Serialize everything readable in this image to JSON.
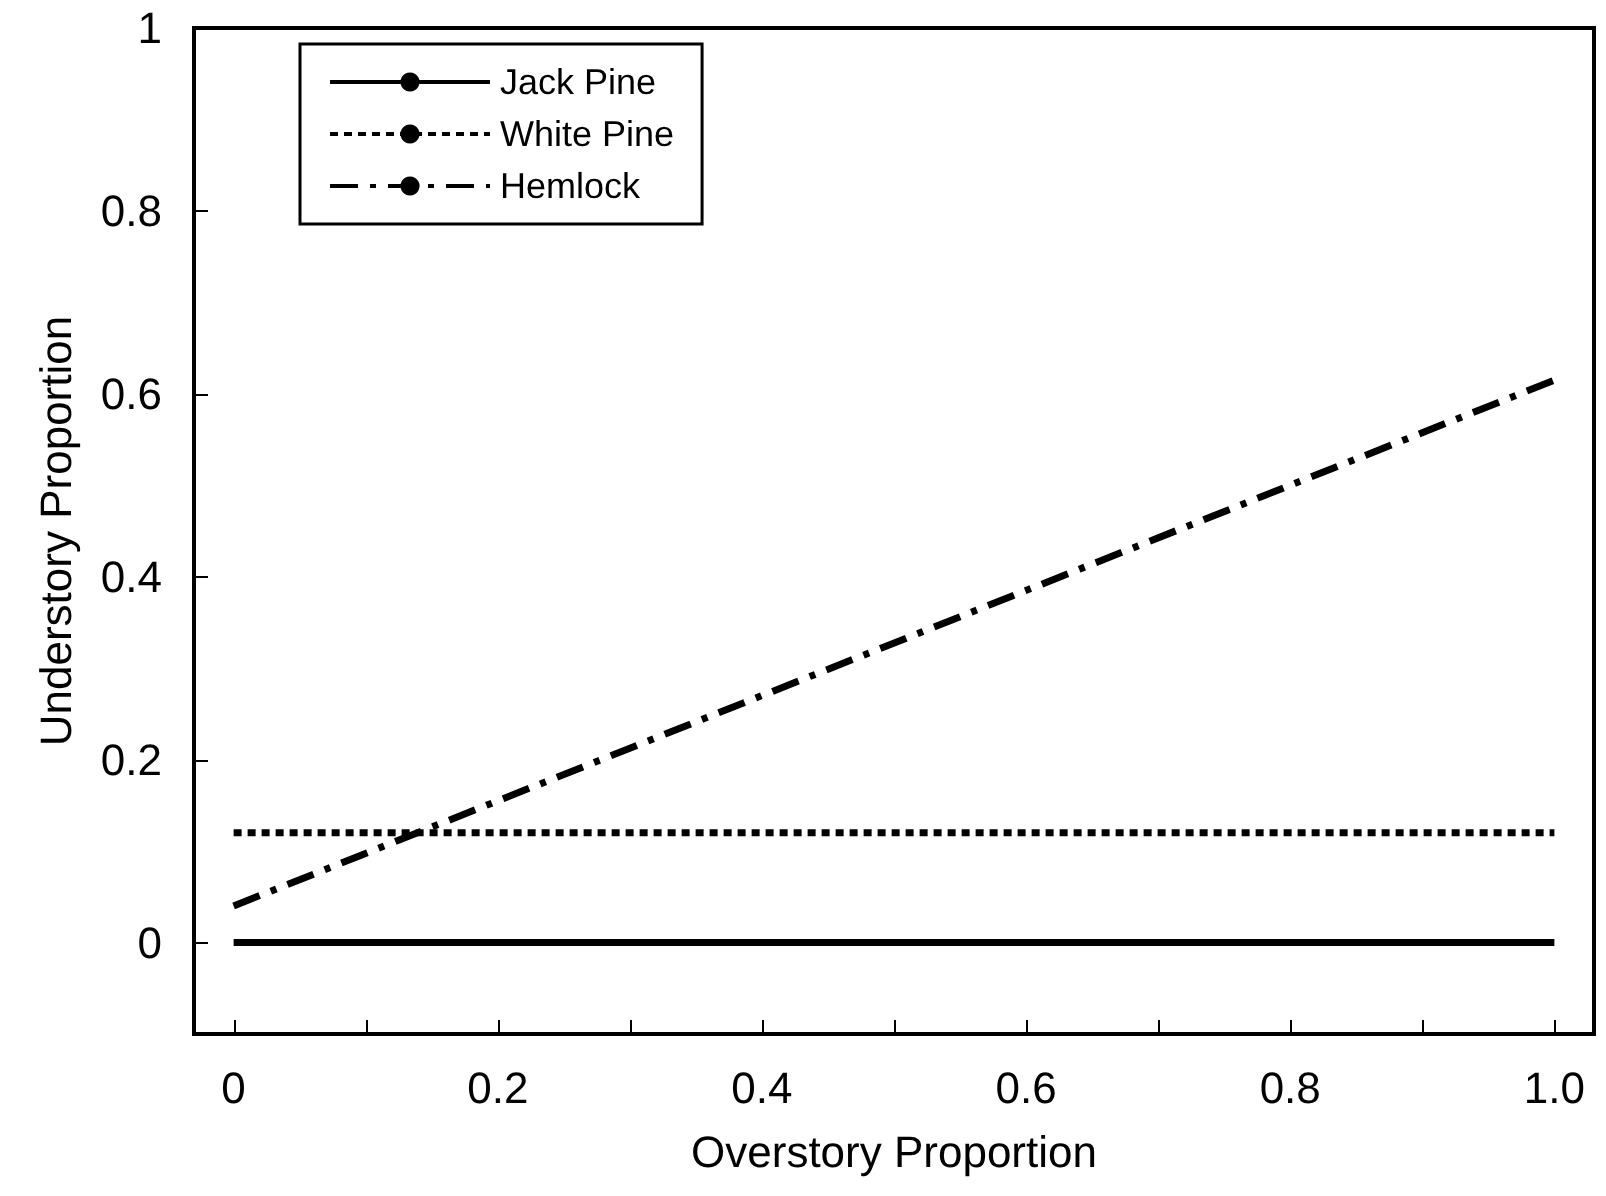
{
  "chart_data": {
    "type": "line",
    "xlabel": "Overstory Proportion",
    "ylabel": "Understory Proportion",
    "x": [
      0,
      1
    ],
    "xlim": [
      -0.03,
      1.03
    ],
    "ylim": [
      -0.1,
      1
    ],
    "xticks": [
      0,
      {
        "value": 0.1,
        "label": null
      },
      0.2,
      {
        "value": 0.3,
        "label": null
      },
      0.4,
      {
        "value": 0.5,
        "label": null
      },
      0.6,
      {
        "value": 0.7,
        "label": null
      },
      0.8,
      {
        "value": 0.9,
        "label": null
      },
      {
        "value": 1,
        "label": "1.0"
      }
    ],
    "yticks": [
      0,
      0.2,
      0.4,
      0.6,
      0.8,
      1
    ],
    "grid": false,
    "legend": "top left",
    "marker": "none",
    "series": [
      {
        "name": "Jack Pine",
        "color": "#000000",
        "values": [
          0,
          0
        ],
        "line_style": "solid"
      },
      {
        "name": "White Pine",
        "color": "#000000",
        "values": [
          0.12,
          0.12
        ],
        "line_style": "dotted"
      },
      {
        "name": "Hemlock",
        "color": "#000000",
        "values": [
          0.04,
          0.615
        ],
        "line_style": "dashdot"
      }
    ]
  }
}
